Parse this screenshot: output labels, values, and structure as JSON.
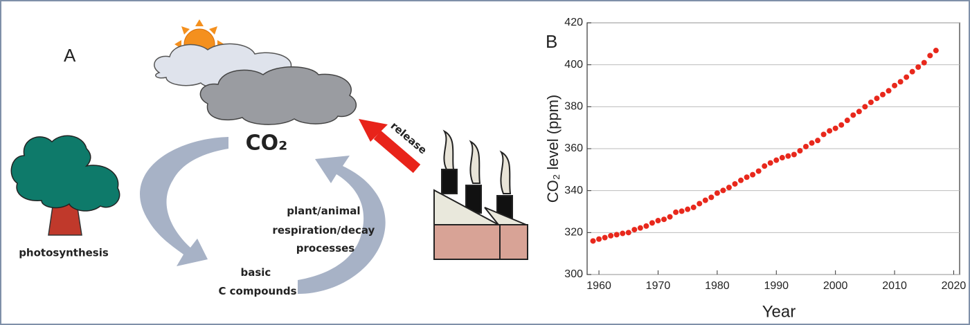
{
  "panel_a": {
    "label": "A",
    "co2": "CO₂",
    "release": "release",
    "photosynthesis": "photosynthesis",
    "respiration": [
      "plant/animal",
      "respiration/decay",
      "processes"
    ],
    "compounds": [
      "basic",
      "C compounds"
    ]
  },
  "chart_data": {
    "type": "scatter",
    "panel_label": "B",
    "xlabel": "Year",
    "ylabel": "CO₂ level (ppm)",
    "x": [
      1959,
      1960,
      1961,
      1962,
      1963,
      1964,
      1965,
      1966,
      1967,
      1968,
      1969,
      1970,
      1971,
      1972,
      1973,
      1974,
      1975,
      1976,
      1977,
      1978,
      1979,
      1980,
      1981,
      1982,
      1983,
      1984,
      1985,
      1986,
      1987,
      1988,
      1989,
      1990,
      1991,
      1992,
      1993,
      1994,
      1995,
      1996,
      1997,
      1998,
      1999,
      2000,
      2001,
      2002,
      2003,
      2004,
      2005,
      2006,
      2007,
      2008,
      2009,
      2010,
      2011,
      2012,
      2013,
      2014,
      2015,
      2016,
      2017
    ],
    "values": [
      316.0,
      316.9,
      317.6,
      318.5,
      319.0,
      319.6,
      320.0,
      321.4,
      322.2,
      323.1,
      324.6,
      325.7,
      326.3,
      327.5,
      329.7,
      330.2,
      331.1,
      332.0,
      333.8,
      335.4,
      336.8,
      338.8,
      340.1,
      341.5,
      343.2,
      344.9,
      346.4,
      347.6,
      349.3,
      351.7,
      353.2,
      354.5,
      355.7,
      356.5,
      357.2,
      359.0,
      361.0,
      362.7,
      363.9,
      366.8,
      368.5,
      369.7,
      371.3,
      373.5,
      376.0,
      377.7,
      380.0,
      382.1,
      384.0,
      385.8,
      387.6,
      390.1,
      391.9,
      394.1,
      396.7,
      398.9,
      401.0,
      404.4,
      406.8
    ],
    "color": "#e8281c",
    "xlim": [
      1958,
      2021
    ],
    "xticks": [
      1960,
      1970,
      1980,
      1990,
      2000,
      2010,
      2020
    ],
    "ylim": [
      300,
      420
    ],
    "yticks": [
      300,
      320,
      340,
      360,
      380,
      400,
      420
    ],
    "grid": true
  }
}
